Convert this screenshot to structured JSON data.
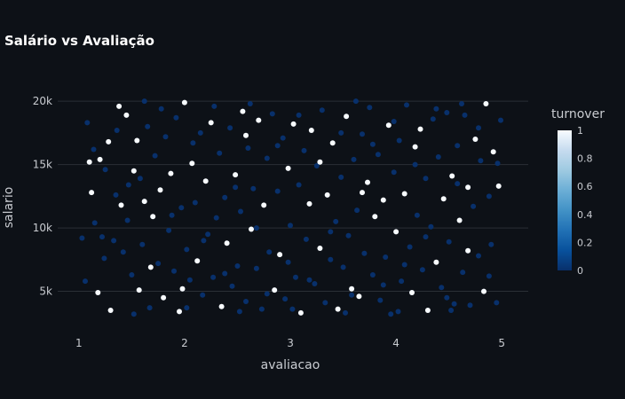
{
  "chart_data": {
    "type": "scatter",
    "title": "Salário vs Avaliação",
    "xlabel": "avaliacao",
    "ylabel": "salario",
    "xlim": [
      0.8,
      5.25
    ],
    "ylim": [
      2800,
      20500
    ],
    "xticks": [
      1,
      2,
      3,
      4,
      5
    ],
    "xtick_labels": [
      "1",
      "2",
      "3",
      "4",
      "5"
    ],
    "yticks": [
      5000,
      10000,
      15000,
      20000
    ],
    "ytick_labels": [
      "5k",
      "10k",
      "15k",
      "20k"
    ],
    "grid": true,
    "colorbar": {
      "title": "turnover",
      "ticks": [
        0,
        0.2,
        0.4,
        0.6,
        0.8,
        1
      ],
      "tick_labels": [
        "0",
        "0.2",
        "0.4",
        "0.6",
        "0.8",
        "1"
      ],
      "colors": [
        "#08306b",
        "#08519c",
        "#2171b5",
        "#4292c6",
        "#6baed6",
        "#9ecae1",
        "#c6dbef",
        "#f7fbff"
      ]
    },
    "points": [
      [
        1.03,
        9200,
        0
      ],
      [
        1.08,
        18300,
        0
      ],
      [
        1.1,
        15200,
        1
      ],
      [
        1.12,
        12800,
        1
      ],
      [
        1.15,
        10400,
        0
      ],
      [
        1.18,
        4900,
        1
      ],
      [
        1.2,
        15400,
        1
      ],
      [
        1.22,
        9300,
        0
      ],
      [
        1.25,
        14600,
        0
      ],
      [
        1.28,
        16800,
        1
      ],
      [
        1.3,
        3500,
        1
      ],
      [
        1.33,
        9000,
        0
      ],
      [
        1.35,
        12600,
        0
      ],
      [
        1.38,
        19600,
        1
      ],
      [
        1.4,
        11800,
        1
      ],
      [
        1.42,
        8100,
        0
      ],
      [
        1.45,
        18900,
        1
      ],
      [
        1.47,
        13400,
        0
      ],
      [
        1.5,
        6300,
        0
      ],
      [
        1.52,
        14500,
        1
      ],
      [
        1.55,
        16900,
        1
      ],
      [
        1.57,
        5100,
        1
      ],
      [
        1.6,
        8700,
        0
      ],
      [
        1.62,
        12100,
        1
      ],
      [
        1.65,
        18000,
        0
      ],
      [
        1.67,
        3700,
        0
      ],
      [
        1.7,
        10900,
        1
      ],
      [
        1.72,
        15700,
        0
      ],
      [
        1.75,
        7200,
        0
      ],
      [
        1.77,
        13000,
        1
      ],
      [
        1.8,
        4500,
        1
      ],
      [
        1.82,
        17200,
        0
      ],
      [
        1.85,
        9800,
        0
      ],
      [
        1.87,
        14300,
        1
      ],
      [
        1.9,
        6600,
        0
      ],
      [
        1.92,
        18700,
        0
      ],
      [
        1.95,
        3400,
        1
      ],
      [
        1.97,
        11600,
        0
      ],
      [
        2.0,
        19900,
        1
      ],
      [
        2.02,
        8300,
        0
      ],
      [
        2.05,
        5900,
        0
      ],
      [
        2.07,
        15100,
        1
      ],
      [
        2.1,
        12000,
        0
      ],
      [
        2.12,
        7400,
        1
      ],
      [
        2.15,
        17500,
        0
      ],
      [
        2.17,
        4700,
        0
      ],
      [
        2.2,
        13700,
        1
      ],
      [
        2.22,
        9500,
        0
      ],
      [
        2.25,
        18300,
        1
      ],
      [
        2.27,
        6100,
        0
      ],
      [
        2.3,
        10800,
        0
      ],
      [
        2.33,
        15900,
        0
      ],
      [
        2.35,
        3800,
        1
      ],
      [
        2.38,
        12400,
        0
      ],
      [
        2.4,
        8800,
        1
      ],
      [
        2.43,
        17900,
        0
      ],
      [
        2.45,
        5400,
        0
      ],
      [
        2.48,
        14200,
        1
      ],
      [
        2.5,
        7000,
        0
      ],
      [
        2.53,
        11300,
        0
      ],
      [
        2.55,
        19200,
        1
      ],
      [
        2.58,
        4200,
        0
      ],
      [
        2.6,
        16300,
        0
      ],
      [
        2.63,
        9900,
        1
      ],
      [
        2.65,
        13100,
        0
      ],
      [
        2.68,
        6800,
        0
      ],
      [
        2.7,
        18500,
        1
      ],
      [
        2.73,
        3600,
        0
      ],
      [
        2.75,
        11800,
        1
      ],
      [
        2.78,
        15500,
        0
      ],
      [
        2.8,
        8100,
        0
      ],
      [
        2.83,
        19000,
        0
      ],
      [
        2.85,
        5100,
        1
      ],
      [
        2.88,
        12900,
        0
      ],
      [
        2.9,
        7900,
        1
      ],
      [
        2.93,
        17100,
        0
      ],
      [
        2.95,
        4400,
        0
      ],
      [
        2.98,
        14700,
        1
      ],
      [
        3.0,
        10200,
        0
      ],
      [
        3.03,
        18200,
        1
      ],
      [
        3.05,
        6100,
        0
      ],
      [
        3.08,
        13400,
        0
      ],
      [
        3.1,
        3300,
        1
      ],
      [
        3.13,
        16100,
        0
      ],
      [
        3.15,
        9100,
        0
      ],
      [
        3.18,
        11900,
        1
      ],
      [
        3.2,
        17700,
        1
      ],
      [
        3.23,
        5600,
        0
      ],
      [
        3.25,
        14900,
        0
      ],
      [
        3.28,
        8400,
        1
      ],
      [
        3.3,
        19300,
        0
      ],
      [
        3.33,
        4100,
        0
      ],
      [
        3.35,
        12600,
        1
      ],
      [
        3.38,
        7500,
        0
      ],
      [
        3.4,
        16700,
        1
      ],
      [
        3.43,
        10500,
        0
      ],
      [
        3.45,
        3600,
        1
      ],
      [
        3.48,
        14000,
        0
      ],
      [
        3.5,
        6900,
        0
      ],
      [
        3.53,
        18800,
        1
      ],
      [
        3.55,
        9400,
        0
      ],
      [
        3.58,
        5200,
        1
      ],
      [
        3.6,
        15400,
        0
      ],
      [
        3.63,
        11400,
        0
      ],
      [
        3.65,
        4600,
        1
      ],
      [
        3.68,
        17400,
        0
      ],
      [
        3.7,
        8000,
        0
      ],
      [
        3.73,
        13600,
        1
      ],
      [
        3.75,
        19500,
        0
      ],
      [
        3.78,
        6300,
        0
      ],
      [
        3.8,
        10900,
        1
      ],
      [
        3.83,
        15800,
        0
      ],
      [
        3.85,
        4300,
        0
      ],
      [
        3.88,
        12200,
        1
      ],
      [
        3.9,
        7700,
        0
      ],
      [
        3.93,
        18100,
        1
      ],
      [
        3.95,
        3200,
        0
      ],
      [
        3.98,
        14400,
        0
      ],
      [
        4.0,
        9700,
        1
      ],
      [
        4.03,
        16900,
        0
      ],
      [
        4.05,
        5800,
        0
      ],
      [
        4.08,
        12700,
        1
      ],
      [
        4.1,
        19700,
        0
      ],
      [
        4.13,
        8500,
        0
      ],
      [
        4.15,
        4900,
        1
      ],
      [
        4.18,
        15000,
        0
      ],
      [
        4.2,
        11000,
        0
      ],
      [
        4.23,
        17800,
        1
      ],
      [
        4.25,
        6700,
        0
      ],
      [
        4.28,
        13900,
        0
      ],
      [
        4.3,
        3500,
        1
      ],
      [
        4.33,
        10100,
        0
      ],
      [
        4.35,
        18600,
        0
      ],
      [
        4.38,
        7300,
        1
      ],
      [
        4.4,
        15600,
        0
      ],
      [
        4.43,
        5300,
        0
      ],
      [
        4.45,
        12300,
        1
      ],
      [
        4.48,
        19100,
        0
      ],
      [
        4.5,
        8900,
        0
      ],
      [
        4.53,
        14100,
        1
      ],
      [
        4.55,
        4000,
        0
      ],
      [
        4.58,
        16500,
        0
      ],
      [
        4.6,
        10600,
        1
      ],
      [
        4.63,
        6500,
        0
      ],
      [
        4.65,
        18900,
        0
      ],
      [
        4.68,
        13200,
        1
      ],
      [
        4.7,
        3900,
        0
      ],
      [
        4.73,
        11700,
        0
      ],
      [
        4.75,
        17000,
        1
      ],
      [
        4.78,
        7800,
        0
      ],
      [
        4.8,
        15300,
        0
      ],
      [
        4.83,
        5000,
        1
      ],
      [
        4.85,
        19800,
        1
      ],
      [
        4.88,
        12500,
        0
      ],
      [
        4.9,
        8700,
        0
      ],
      [
        4.92,
        16000,
        1
      ],
      [
        4.95,
        4100,
        0
      ],
      [
        4.97,
        13300,
        1
      ],
      [
        4.99,
        18500,
        0
      ],
      [
        1.06,
        5800,
        0
      ],
      [
        1.14,
        16200,
        0
      ],
      [
        1.24,
        7600,
        0
      ],
      [
        1.36,
        17700,
        0
      ],
      [
        1.46,
        10600,
        0
      ],
      [
        1.58,
        13900,
        0
      ],
      [
        1.68,
        6900,
        1
      ],
      [
        1.78,
        19400,
        0
      ],
      [
        1.88,
        11000,
        0
      ],
      [
        1.98,
        5200,
        1
      ],
      [
        2.08,
        16700,
        0
      ],
      [
        2.18,
        9000,
        0
      ],
      [
        2.28,
        19600,
        0
      ],
      [
        2.38,
        6400,
        0
      ],
      [
        2.48,
        13200,
        0
      ],
      [
        2.58,
        17300,
        1
      ],
      [
        2.68,
        10000,
        0
      ],
      [
        2.78,
        4800,
        0
      ],
      [
        2.88,
        16500,
        0
      ],
      [
        2.98,
        7300,
        0
      ],
      [
        3.08,
        18900,
        0
      ],
      [
        3.18,
        5900,
        0
      ],
      [
        3.28,
        15200,
        1
      ],
      [
        3.38,
        9700,
        0
      ],
      [
        3.48,
        17500,
        0
      ],
      [
        3.58,
        4700,
        0
      ],
      [
        3.68,
        12800,
        1
      ],
      [
        3.78,
        16600,
        0
      ],
      [
        3.88,
        5500,
        0
      ],
      [
        3.98,
        18400,
        0
      ],
      [
        4.08,
        7100,
        0
      ],
      [
        4.18,
        16400,
        1
      ],
      [
        4.28,
        9300,
        0
      ],
      [
        4.38,
        19400,
        0
      ],
      [
        4.48,
        4500,
        0
      ],
      [
        4.58,
        13500,
        0
      ],
      [
        4.68,
        8200,
        1
      ],
      [
        4.78,
        17900,
        0
      ],
      [
        4.88,
        6200,
        0
      ],
      [
        4.96,
        15100,
        0
      ],
      [
        1.52,
        3200,
        0
      ],
      [
        2.02,
        3700,
        0
      ],
      [
        2.52,
        3400,
        0
      ],
      [
        3.02,
        3600,
        0
      ],
      [
        3.52,
        3300,
        0
      ],
      [
        4.02,
        3400,
        0
      ],
      [
        4.52,
        3500,
        0
      ],
      [
        1.62,
        20000,
        0
      ],
      [
        2.62,
        19800,
        0
      ],
      [
        3.62,
        20000,
        0
      ],
      [
        4.62,
        19800,
        0
      ]
    ]
  }
}
